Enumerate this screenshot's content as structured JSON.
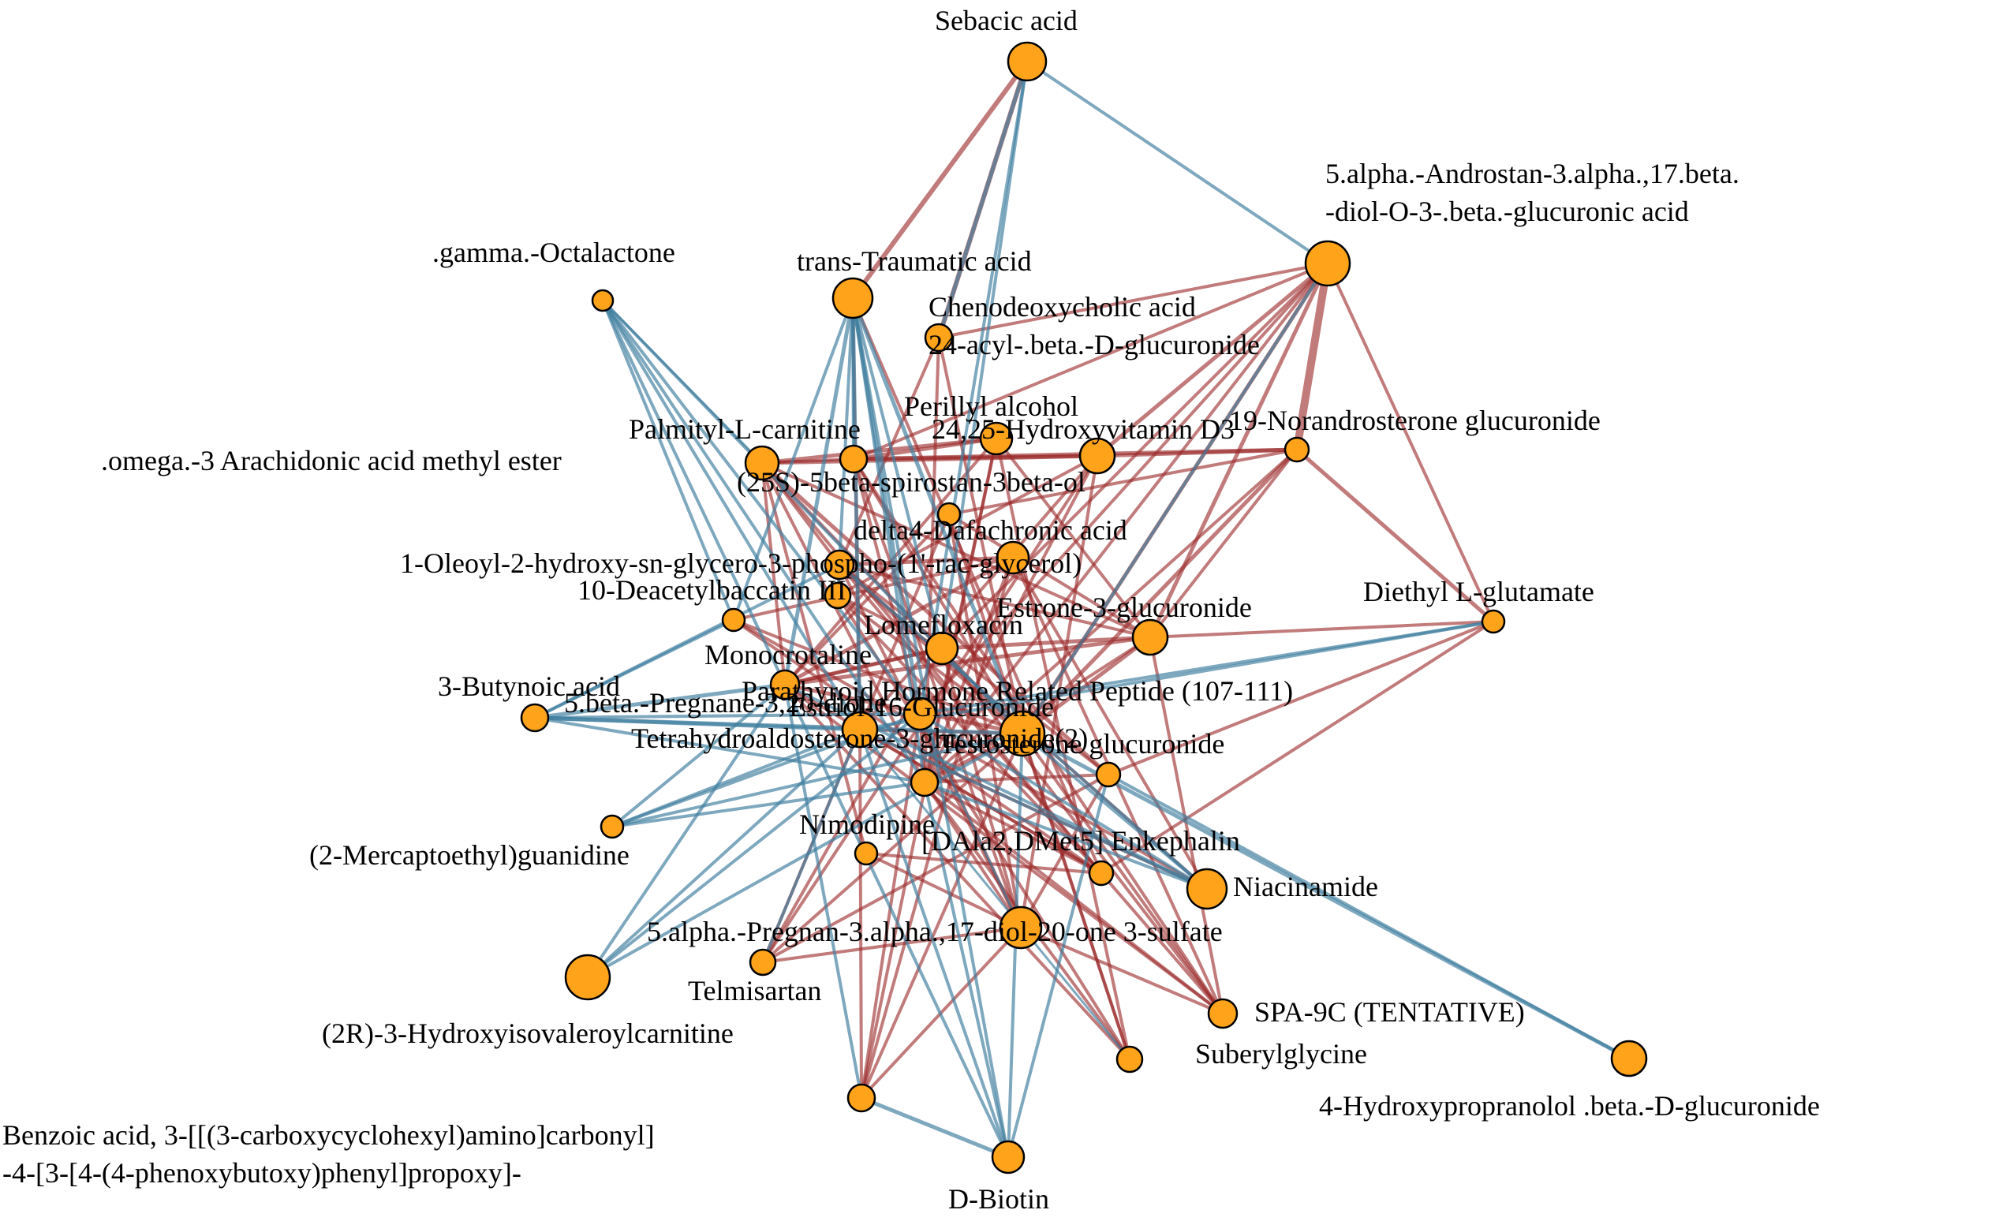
{
  "network": {
    "colors": {
      "positive_edge": "#9b2a2a",
      "negative_edge": "#3f7f9f",
      "node_fill": "#ffa31a",
      "node_stroke": "#000000"
    },
    "nodes": [
      {
        "id": "sebacic",
        "label": "Sebacic acid"
      },
      {
        "id": "androstan",
        "label": "5.alpha.-Androstan-3.alpha.,17.beta.\n-diol-O-3-.beta.-glucuronic acid"
      },
      {
        "id": "gamma",
        "label": ".gamma.-Octalactone"
      },
      {
        "id": "traumatic",
        "label": "trans-Traumatic acid"
      },
      {
        "id": "cheno",
        "label": "Chenodeoxycholic acid\n24-acyl-.beta.-D-glucuronide"
      },
      {
        "id": "perillyl",
        "label": "Perillyl alcohol"
      },
      {
        "id": "hydroxyvit",
        "label": "24,25-Hydroxyvitamin D3"
      },
      {
        "id": "norandro",
        "label": "19-Norandrosterone glucuronide"
      },
      {
        "id": "palmityl",
        "label": "Palmityl-L-carnitine"
      },
      {
        "id": "omega",
        "label": ".omega.-3 Arachidonic acid methyl ester"
      },
      {
        "id": "spirostan",
        "label": "(25S)-5beta-spirostan-3beta-ol"
      },
      {
        "id": "dafachronic",
        "label": "delta4-Dafachronic acid"
      },
      {
        "id": "oleoyl",
        "label": "1-Oleoyl-2-hydroxy-sn-glycero-3-phospho-(1'-rac-glycerol)"
      },
      {
        "id": "deacetyl",
        "label": "10-Deacetylbaccatin III"
      },
      {
        "id": "diethyl",
        "label": "Diethyl L-glutamate"
      },
      {
        "id": "estrone",
        "label": "Estrone-3-glucuronide"
      },
      {
        "id": "lomefloxacin",
        "label": "Lomefloxacin"
      },
      {
        "id": "monocrotaline",
        "label": "Monocrotaline"
      },
      {
        "id": "butynoic",
        "label": "3-Butynoic acid"
      },
      {
        "id": "pregnane",
        "label": "5.beta.-Pregnane-3,20-dione"
      },
      {
        "id": "pthrp",
        "label": "Parathyroid Hormone Related Peptide (107-111)"
      },
      {
        "id": "estriol",
        "label": "Estriol-16-Glucuronide"
      },
      {
        "id": "tetrahydro",
        "label": "Tetrahydroaldosterone-3-glucuronide(2)"
      },
      {
        "id": "testosterone",
        "label": "Testosterone glucuronide"
      },
      {
        "id": "mercapto",
        "label": "(2-Mercaptoethyl)guanidine"
      },
      {
        "id": "nimodipine",
        "label": "Nimodipine"
      },
      {
        "id": "enkephalin",
        "label": "[DAla2,DMet5] Enkephalin"
      },
      {
        "id": "niacinamide",
        "label": "Niacinamide"
      },
      {
        "id": "pregnan",
        "label": "5.alpha.-Pregnan-3.alpha.,17-diol-20-one 3-sulfate"
      },
      {
        "id": "hydroxyiso",
        "label": "(2R)-3-Hydroxyisovaleroylcarnitine"
      },
      {
        "id": "telmisartan",
        "label": "Telmisartan"
      },
      {
        "id": "spa9c",
        "label": "SPA-9C (TENTATIVE)"
      },
      {
        "id": "suberyl",
        "label": "Suberylglycine"
      },
      {
        "id": "hydroxyprop",
        "label": "4-Hydroxypropranolol .beta.-D-glucuronide"
      },
      {
        "id": "benzoic",
        "label": "Benzoic acid, 3-[[(3-carboxycyclohexyl)amino]carbonyl]\n-4-[3-[4-(4-phenoxybutoxy)phenyl]propoxy]-"
      },
      {
        "id": "biotin",
        "label": "D-Biotin"
      }
    ]
  }
}
